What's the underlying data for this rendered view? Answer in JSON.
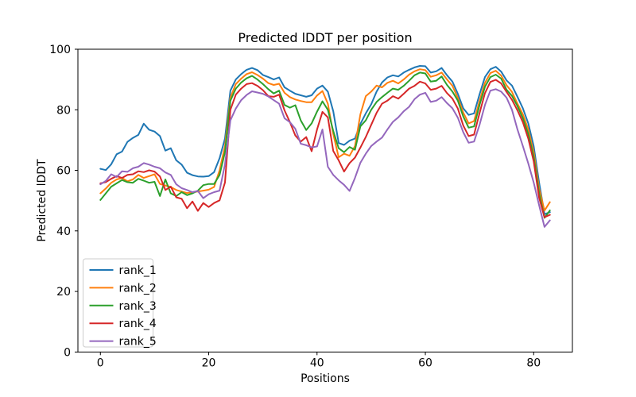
{
  "figure": {
    "title": "Predicted lDDT per position",
    "xlabel": "Positions",
    "ylabel": "Predicted lDDT"
  },
  "chart_data": {
    "type": "line",
    "title": "Predicted lDDT per position",
    "xlabel": "Positions",
    "ylabel": "Predicted lDDT",
    "xlim": [
      -4.15,
      87.15
    ],
    "ylim": [
      0,
      100
    ],
    "x_ticks": [
      0,
      20,
      40,
      60,
      80
    ],
    "y_ticks": [
      0,
      20,
      40,
      60,
      80,
      100
    ],
    "grid": false,
    "legend_position": "lower left",
    "line_width": 2,
    "x": [
      0,
      1,
      2,
      3,
      4,
      5,
      6,
      7,
      8,
      9,
      10,
      11,
      12,
      13,
      14,
      15,
      16,
      17,
      18,
      19,
      20,
      21,
      22,
      23,
      24,
      25,
      26,
      27,
      28,
      29,
      30,
      31,
      32,
      33,
      34,
      35,
      36,
      37,
      38,
      39,
      40,
      41,
      42,
      43,
      44,
      45,
      46,
      47,
      48,
      49,
      50,
      51,
      52,
      53,
      54,
      55,
      56,
      57,
      58,
      59,
      60,
      61,
      62,
      63,
      64,
      65,
      66,
      67,
      68,
      69,
      70,
      71,
      72,
      73,
      74,
      75,
      76,
      77,
      78,
      79,
      80,
      81,
      82,
      83
    ],
    "series": [
      {
        "name": "rank_1",
        "color": "#1f77b4",
        "values": [
          60.5,
          60.1,
          62.0,
          65.3,
          66.2,
          69.4,
          70.7,
          71.7,
          75.4,
          73.4,
          72.8,
          71.3,
          66.5,
          67.3,
          63.3,
          61.9,
          59.2,
          58.4,
          58.0,
          57.9,
          58.1,
          59.4,
          64.0,
          70.5,
          86.3,
          90.0,
          91.8,
          93.2,
          93.8,
          93.1,
          91.5,
          90.8,
          90.0,
          90.7,
          87.4,
          86.3,
          85.3,
          84.8,
          84.3,
          84.8,
          87.0,
          88.0,
          86.0,
          79.5,
          69.0,
          68.4,
          69.8,
          70.5,
          75.3,
          78.8,
          81.8,
          86.0,
          89.0,
          90.7,
          91.4,
          91.0,
          92.3,
          93.2,
          94.0,
          94.5,
          94.4,
          92.3,
          92.7,
          93.8,
          91.4,
          89.3,
          85.3,
          80.5,
          78.3,
          78.8,
          85.1,
          90.8,
          93.4,
          94.2,
          92.6,
          89.7,
          88.0,
          84.3,
          80.5,
          75.5,
          68.0,
          56.0,
          45.5,
          46.2
        ]
      },
      {
        "name": "rank_2",
        "color": "#ff7f0e",
        "values": [
          52.4,
          54.0,
          55.9,
          57.0,
          57.5,
          56.4,
          57.0,
          58.5,
          57.5,
          58.1,
          58.7,
          55.5,
          55.0,
          54.5,
          53.5,
          53.0,
          52.5,
          52.8,
          53.0,
          53.3,
          53.6,
          54.5,
          60.0,
          68.0,
          84.0,
          88.5,
          90.3,
          91.8,
          92.4,
          91.5,
          90.3,
          88.8,
          88.2,
          88.6,
          85.6,
          84.2,
          83.4,
          82.9,
          82.5,
          82.5,
          84.7,
          86.2,
          82.0,
          72.0,
          64.3,
          65.5,
          64.8,
          68.0,
          78.5,
          84.5,
          86.0,
          88.0,
          87.4,
          88.9,
          89.6,
          88.7,
          90.0,
          91.6,
          92.7,
          93.4,
          93.1,
          90.9,
          91.4,
          92.3,
          90.0,
          87.9,
          83.9,
          79.1,
          75.5,
          76.3,
          82.9,
          88.9,
          92.1,
          92.9,
          91.3,
          88.1,
          85.9,
          82.0,
          78.5,
          73.5,
          66.0,
          54.0,
          46.7,
          49.5
        ]
      },
      {
        "name": "rank_3",
        "color": "#2ca02c",
        "values": [
          50.2,
          52.4,
          54.6,
          55.7,
          56.8,
          56.1,
          55.9,
          57.2,
          56.6,
          55.9,
          56.2,
          51.5,
          57.0,
          52.4,
          51.5,
          52.8,
          51.8,
          52.4,
          53.3,
          55.1,
          55.5,
          55.5,
          58.5,
          66.0,
          83.0,
          87.0,
          89.0,
          90.4,
          91.2,
          90.0,
          88.5,
          86.8,
          85.4,
          86.3,
          81.6,
          80.7,
          81.5,
          76.5,
          73.3,
          75.5,
          79.4,
          82.8,
          80.0,
          73.0,
          67.3,
          66.0,
          67.7,
          66.8,
          74.5,
          76.5,
          80.0,
          82.6,
          84.2,
          85.6,
          87.0,
          86.6,
          87.9,
          89.6,
          91.4,
          92.3,
          92.0,
          89.3,
          89.6,
          91.0,
          88.2,
          86.0,
          83.0,
          77.8,
          74.1,
          74.5,
          81.6,
          87.6,
          90.8,
          91.6,
          90.3,
          86.6,
          84.6,
          81.2,
          77.2,
          72.0,
          64.5,
          52.5,
          44.3,
          46.8
        ]
      },
      {
        "name": "rank_4",
        "color": "#d62728",
        "values": [
          55.7,
          56.1,
          57.2,
          58.1,
          57.5,
          58.5,
          58.7,
          59.7,
          59.4,
          60.0,
          59.6,
          58.0,
          53.5,
          54.6,
          51.1,
          50.6,
          47.5,
          49.7,
          46.6,
          49.2,
          47.9,
          49.2,
          50.1,
          56.0,
          80.0,
          85.0,
          87.0,
          88.5,
          88.8,
          87.9,
          86.5,
          84.5,
          84.3,
          85.0,
          79.8,
          75.9,
          71.5,
          69.5,
          71.0,
          66.3,
          73.5,
          79.3,
          77.5,
          66.4,
          63.3,
          59.6,
          62.4,
          64.2,
          67.5,
          71.0,
          75.0,
          79.0,
          82.0,
          83.0,
          84.5,
          83.7,
          85.3,
          87.0,
          87.9,
          89.3,
          88.7,
          86.6,
          87.0,
          87.9,
          85.5,
          83.7,
          80.4,
          74.8,
          71.3,
          71.8,
          78.9,
          85.5,
          89.2,
          89.9,
          88.7,
          85.9,
          83.3,
          79.8,
          75.9,
          70.5,
          63.0,
          51.0,
          44.5,
          45.3
        ]
      },
      {
        "name": "rank_5",
        "color": "#9467bd",
        "values": [
          55.4,
          56.5,
          58.7,
          57.8,
          59.7,
          59.5,
          60.7,
          61.2,
          62.4,
          61.9,
          61.2,
          60.7,
          59.3,
          58.5,
          55.4,
          54.1,
          53.5,
          52.8,
          53.2,
          50.8,
          52.1,
          52.8,
          53.3,
          62.0,
          76.5,
          80.4,
          83.2,
          84.9,
          86.1,
          85.7,
          85.3,
          84.4,
          83.2,
          82.0,
          77.2,
          75.9,
          73.7,
          68.8,
          68.3,
          67.6,
          67.9,
          73.5,
          61.2,
          58.5,
          56.7,
          55.2,
          53.2,
          57.5,
          62.5,
          65.5,
          68.0,
          69.5,
          70.8,
          73.5,
          76.0,
          77.5,
          79.5,
          81.0,
          83.5,
          85.0,
          85.6,
          82.6,
          83.0,
          84.2,
          82.2,
          80.5,
          77.4,
          72.6,
          69.1,
          69.5,
          75.0,
          81.6,
          86.3,
          86.8,
          86.0,
          84.0,
          80.0,
          73.5,
          68.0,
          62.3,
          56.0,
          48.5,
          41.3,
          43.5
        ]
      }
    ]
  },
  "legend": {
    "entries": [
      "rank_1",
      "rank_2",
      "rank_3",
      "rank_4",
      "rank_5"
    ]
  },
  "style": {
    "spine_color": "#000000",
    "background": "#ffffff",
    "legend_border": "#cccccc"
  }
}
